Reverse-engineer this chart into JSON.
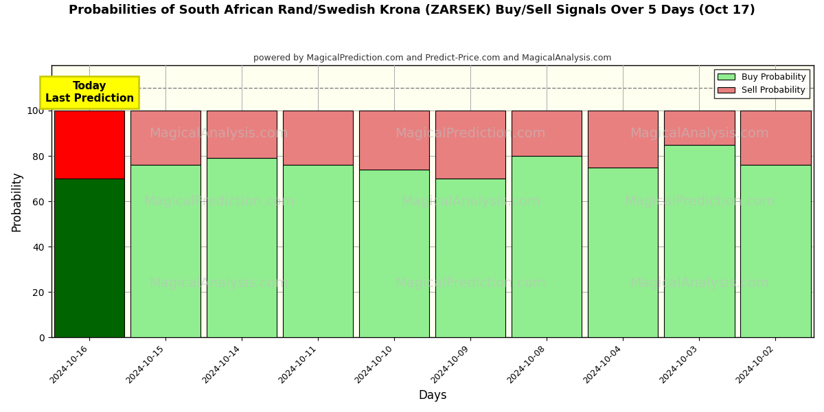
{
  "title": "Probabilities of South African Rand/Swedish Krona (ZARSEK) Buy/Sell Signals Over 5 Days (Oct 17)",
  "subtitle": "powered by MagicalPrediction.com and Predict-Price.com and MagicalAnalysis.com",
  "xlabel": "Days",
  "ylabel": "Probability",
  "dates": [
    "2024-10-16",
    "2024-10-15",
    "2024-10-14",
    "2024-10-11",
    "2024-10-10",
    "2024-10-09",
    "2024-10-08",
    "2024-10-04",
    "2024-10-03",
    "2024-10-02"
  ],
  "buy_values": [
    70,
    76,
    79,
    76,
    74,
    70,
    80,
    75,
    85,
    76
  ],
  "sell_values": [
    30,
    24,
    21,
    24,
    26,
    30,
    20,
    25,
    15,
    24
  ],
  "today_idx": 0,
  "today_buy_color": "#006400",
  "today_sell_color": "#ff0000",
  "other_buy_color": "#90EE90",
  "other_sell_color": "#E88080",
  "bar_edge_color": "#000000",
  "today_annotation": "Today\nLast Prediction",
  "ylim": [
    0,
    120
  ],
  "yticks": [
    0,
    20,
    40,
    60,
    80,
    100
  ],
  "dashed_line_y": 110,
  "plot_bg_color": "#FFFFF0",
  "fig_bg_color": "#ffffff",
  "grid_color": "#aaaaaa",
  "watermark_texts": [
    "MagicalAnalysis.com",
    "MagicalPrediction.com"
  ],
  "legend_buy_label": "Buy Probability",
  "legend_sell_label": "Sell Probability"
}
